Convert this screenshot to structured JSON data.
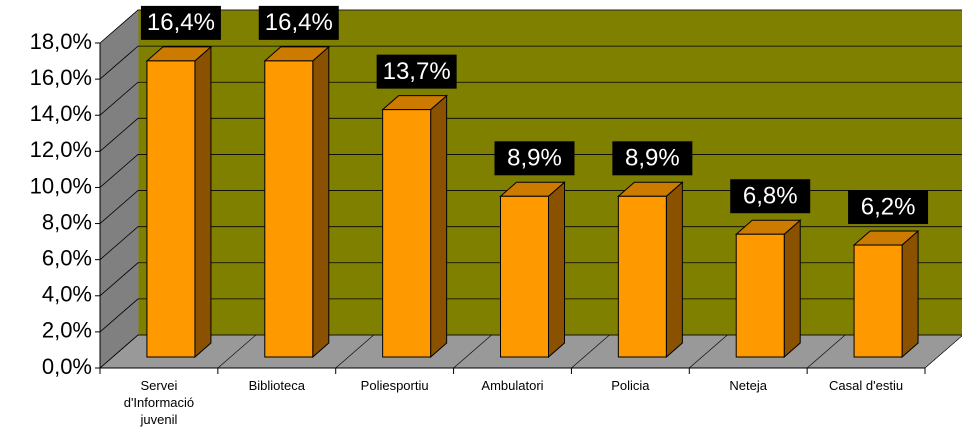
{
  "chart_data": {
    "type": "bar",
    "categories": [
      "Servei d'Informació juvenil",
      "Biblioteca",
      "Poliesportiu",
      "Ambulatori",
      "Policia",
      "Neteja",
      "Casal d'estiu"
    ],
    "values": [
      16.4,
      16.4,
      13.7,
      8.9,
      8.9,
      6.8,
      6.2
    ],
    "value_labels": [
      "16,4%",
      "16,4%",
      "13,7%",
      "8,9%",
      "8,9%",
      "6,8%",
      "6,2%"
    ],
    "color": "#ff9900",
    "ylim": [
      0,
      18
    ],
    "yticks": [
      {
        "value": 0,
        "label": "0,0%"
      },
      {
        "value": 2,
        "label": "2,0%"
      },
      {
        "value": 4,
        "label": "4,0%"
      },
      {
        "value": 6,
        "label": "6,0%"
      },
      {
        "value": 8,
        "label": "8,0%"
      },
      {
        "value": 10,
        "label": "10,0%"
      },
      {
        "value": 12,
        "label": "12,0%"
      },
      {
        "value": 14,
        "label": "14,0%"
      },
      {
        "value": 16,
        "label": "16,0%"
      },
      {
        "value": 18,
        "label": "18,0%"
      }
    ],
    "grid": true
  }
}
